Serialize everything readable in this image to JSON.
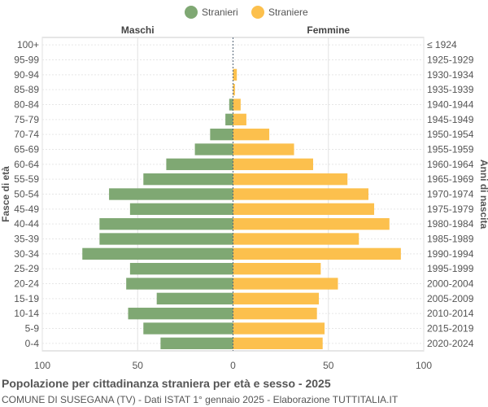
{
  "chart_data": {
    "type": "bar",
    "orientation": "horizontal-population-pyramid",
    "legend": [
      {
        "name": "Stranieri",
        "color": "#7fa873"
      },
      {
        "name": "Straniere",
        "color": "#fcc04d"
      }
    ],
    "legend_position": "top-center",
    "left_header": "Maschi",
    "right_header": "Femmine",
    "ylabel_left": "Fasce di età",
    "ylabel_right": "Anni di nascita",
    "age_groups": [
      "100+",
      "95-99",
      "90-94",
      "85-89",
      "80-84",
      "75-79",
      "70-74",
      "65-69",
      "60-64",
      "55-59",
      "50-54",
      "45-49",
      "40-44",
      "35-39",
      "30-34",
      "25-29",
      "20-24",
      "15-19",
      "10-14",
      "5-9",
      "0-4"
    ],
    "birth_years": [
      "≤ 1924",
      "1925-1929",
      "1930-1934",
      "1935-1939",
      "1940-1944",
      "1945-1949",
      "1950-1954",
      "1955-1959",
      "1960-1964",
      "1965-1969",
      "1970-1974",
      "1975-1979",
      "1980-1984",
      "1985-1989",
      "1990-1994",
      "1995-1999",
      "2000-2004",
      "2005-2009",
      "2010-2014",
      "2015-2019",
      "2020-2024"
    ],
    "series": [
      {
        "name": "Stranieri",
        "values": [
          0,
          0,
          0,
          0,
          2,
          4,
          12,
          20,
          35,
          47,
          65,
          54,
          70,
          70,
          79,
          54,
          56,
          40,
          55,
          47,
          38
        ]
      },
      {
        "name": "Straniere",
        "values": [
          0,
          0,
          2,
          1,
          4,
          7,
          19,
          32,
          42,
          60,
          71,
          74,
          82,
          66,
          88,
          46,
          55,
          45,
          44,
          48,
          47
        ]
      }
    ],
    "x_ticks": [
      "100",
      "50",
      "0",
      "50",
      "100"
    ],
    "xlim": [
      -100,
      100
    ],
    "grid": true
  },
  "footer": {
    "title": "Popolazione per cittadinanza straniera per età e sesso - 2025",
    "subtitle": "COMUNE DI SUSEGANA (TV) - Dati ISTAT 1° gennaio 2025 - Elaborazione TUTTITALIA.IT"
  }
}
